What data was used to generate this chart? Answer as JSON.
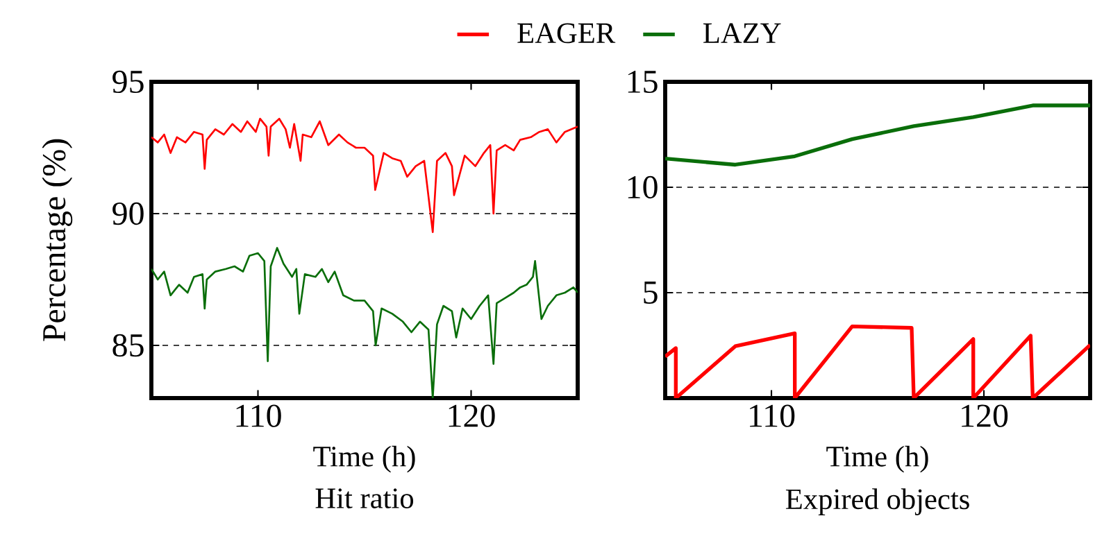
{
  "chart_data": [
    {
      "type": "line",
      "title": "Hit ratio",
      "xlabel": "Time (h)",
      "ylabel": "Percentage (%)",
      "xlim": [
        105,
        125
      ],
      "xticks": [
        110,
        120
      ],
      "ylim": [
        83,
        95
      ],
      "yticks": [
        85,
        90,
        95
      ],
      "grid": "y",
      "legend": "top",
      "series": [
        {
          "name": "EAGER",
          "color": "#ff0000",
          "x": [
            105.0,
            105.3,
            105.6,
            105.9,
            106.2,
            106.6,
            107.0,
            107.4,
            107.5,
            107.6,
            108.0,
            108.4,
            108.8,
            109.2,
            109.5,
            109.9,
            110.1,
            110.4,
            110.5,
            110.6,
            111.0,
            111.3,
            111.5,
            111.7,
            112.0,
            112.1,
            112.5,
            112.9,
            113.3,
            113.8,
            114.2,
            114.6,
            115.0,
            115.4,
            115.5,
            115.9,
            116.3,
            116.7,
            117.0,
            117.4,
            117.8,
            118.2,
            118.4,
            118.8,
            119.1,
            119.2,
            119.7,
            120.2,
            120.6,
            120.9,
            121.05,
            121.2,
            121.6,
            122.0,
            122.3,
            122.8,
            123.2,
            123.6,
            124.0,
            124.4,
            125.0
          ],
          "values": [
            92.9,
            92.7,
            93.0,
            92.3,
            92.9,
            92.7,
            93.1,
            93.0,
            91.7,
            92.8,
            93.2,
            93.0,
            93.4,
            93.1,
            93.5,
            93.1,
            93.6,
            93.3,
            92.2,
            93.3,
            93.6,
            93.2,
            92.5,
            93.4,
            92.0,
            93.0,
            92.9,
            93.5,
            92.6,
            93.0,
            92.7,
            92.5,
            92.5,
            92.2,
            90.9,
            92.3,
            92.1,
            92.0,
            91.4,
            91.8,
            92.0,
            89.3,
            92.0,
            92.3,
            91.8,
            90.7,
            92.2,
            91.8,
            92.3,
            92.6,
            90.0,
            92.4,
            92.6,
            92.4,
            92.8,
            92.9,
            93.1,
            93.2,
            92.7,
            93.1,
            93.3
          ]
        },
        {
          "name": "LAZY",
          "color": "#0a6e0a",
          "x": [
            105.0,
            105.3,
            105.6,
            105.9,
            106.3,
            106.7,
            107.0,
            107.4,
            107.5,
            107.6,
            108.0,
            108.5,
            108.9,
            109.3,
            109.6,
            110.0,
            110.3,
            110.46,
            110.6,
            110.9,
            111.2,
            111.6,
            111.8,
            111.94,
            112.2,
            112.7,
            113.0,
            113.3,
            113.6,
            114.0,
            114.5,
            115.0,
            115.4,
            115.52,
            115.8,
            116.3,
            116.8,
            117.2,
            117.6,
            118.0,
            118.2,
            118.4,
            118.7,
            119.1,
            119.3,
            119.6,
            120.0,
            120.4,
            120.8,
            121.05,
            121.2,
            121.6,
            122.0,
            122.3,
            122.6,
            122.9,
            123.0,
            123.3,
            123.6,
            124.0,
            124.4,
            124.8,
            125.0
          ],
          "values": [
            87.9,
            87.5,
            87.8,
            86.9,
            87.3,
            87.0,
            87.6,
            87.7,
            86.4,
            87.5,
            87.8,
            87.9,
            88.0,
            87.8,
            88.4,
            88.5,
            88.2,
            84.4,
            88.0,
            88.7,
            88.1,
            87.6,
            87.9,
            86.2,
            87.7,
            87.6,
            87.9,
            87.4,
            87.8,
            86.9,
            86.7,
            86.7,
            86.3,
            85.0,
            86.4,
            86.2,
            85.9,
            85.5,
            85.9,
            85.6,
            83.0,
            85.8,
            86.5,
            86.3,
            85.3,
            86.4,
            86.0,
            86.5,
            86.9,
            84.3,
            86.6,
            86.8,
            87.0,
            87.2,
            87.3,
            87.6,
            88.2,
            86.0,
            86.5,
            86.9,
            87.0,
            87.2,
            87.0
          ]
        }
      ]
    },
    {
      "type": "line",
      "title": "Expired objects",
      "xlabel": "Time (h)",
      "xlim": [
        105,
        125
      ],
      "xticks": [
        110,
        120
      ],
      "ylim": [
        0,
        15
      ],
      "yticks": [
        5,
        10,
        15
      ],
      "grid": "y",
      "series": [
        {
          "color": "#ff0000",
          "x": [
            105.0,
            105.5,
            105.5,
            108.3,
            111.1,
            111.1,
            113.8,
            116.6,
            116.7,
            119.5,
            119.5,
            122.2,
            122.3,
            125.0
          ],
          "values": [
            1.97,
            2.37,
            0,
            2.46,
            3.07,
            0,
            3.4,
            3.33,
            0,
            2.8,
            0,
            2.96,
            0,
            2.52
          ]
        },
        {
          "color": "#0a6e0a",
          "x": [
            105.0,
            108.3,
            111.1,
            113.8,
            116.7,
            119.5,
            122.3,
            125.0
          ],
          "values": [
            11.36,
            11.07,
            11.47,
            12.28,
            12.9,
            13.33,
            13.88,
            13.88
          ]
        }
      ]
    }
  ]
}
